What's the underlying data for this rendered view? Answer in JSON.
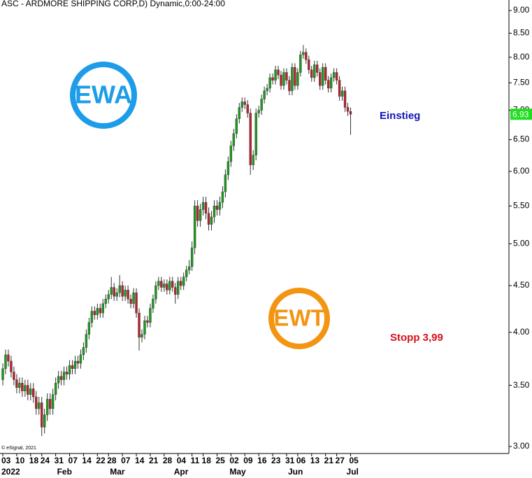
{
  "chart_data": {
    "type": "candlestick",
    "title": "ASC - ARDMORE SHIPPING CORP,D) Dynamic,0:00-24:00",
    "copyright": "© eSignal, 2021",
    "annotations": [
      "Einstieg",
      "Stopp 3,99"
    ],
    "logos": [
      "EWA",
      "EWT"
    ],
    "up_color": "#1d9a1d",
    "down_color": "#b8232d",
    "log_scale": true,
    "last_value": 6.93,
    "categories": [
      "2022-01-03",
      "2022-01-04",
      "2022-01-05",
      "2022-01-06",
      "2022-01-07",
      "2022-01-10",
      "2022-01-11",
      "2022-01-12",
      "2022-01-13",
      "2022-01-14",
      "2022-01-18",
      "2022-01-19",
      "2022-01-20",
      "2022-01-21",
      "2022-01-24",
      "2022-01-25",
      "2022-01-26",
      "2022-01-27",
      "2022-01-28",
      "2022-01-31",
      "2022-02-01",
      "2022-02-02",
      "2022-02-03",
      "2022-02-04",
      "2022-02-07",
      "2022-02-08",
      "2022-02-09",
      "2022-02-10",
      "2022-02-11",
      "2022-02-14",
      "2022-02-15",
      "2022-02-16",
      "2022-02-17",
      "2022-02-18",
      "2022-02-22",
      "2022-02-23",
      "2022-02-24",
      "2022-02-25",
      "2022-02-28",
      "2022-03-01",
      "2022-03-02",
      "2022-03-03",
      "2022-03-04",
      "2022-03-07",
      "2022-03-08",
      "2022-03-09",
      "2022-03-10",
      "2022-03-11",
      "2022-03-14",
      "2022-03-15",
      "2022-03-16",
      "2022-03-17",
      "2022-03-18",
      "2022-03-21",
      "2022-03-22",
      "2022-03-23",
      "2022-03-24",
      "2022-03-25",
      "2022-03-28",
      "2022-03-29",
      "2022-03-30",
      "2022-03-31",
      "2022-04-01",
      "2022-04-04",
      "2022-04-05",
      "2022-04-06",
      "2022-04-07",
      "2022-04-08",
      "2022-04-11",
      "2022-04-12",
      "2022-04-13",
      "2022-04-14",
      "2022-04-18",
      "2022-04-19",
      "2022-04-20",
      "2022-04-21",
      "2022-04-22",
      "2022-04-25",
      "2022-04-26",
      "2022-04-27",
      "2022-04-28",
      "2022-04-29",
      "2022-05-02",
      "2022-05-03",
      "2022-05-04",
      "2022-05-05",
      "2022-05-06",
      "2022-05-09",
      "2022-05-10",
      "2022-05-11",
      "2022-05-12",
      "2022-05-13",
      "2022-05-16",
      "2022-05-17",
      "2022-05-18",
      "2022-05-19",
      "2022-05-20",
      "2022-05-23",
      "2022-05-24",
      "2022-05-25",
      "2022-05-26",
      "2022-05-27",
      "2022-05-31",
      "2022-06-01",
      "2022-06-02",
      "2022-06-03",
      "2022-06-06",
      "2022-06-07",
      "2022-06-08",
      "2022-06-09",
      "2022-06-10",
      "2022-06-13",
      "2022-06-14",
      "2022-06-15",
      "2022-06-16",
      "2022-06-17",
      "2022-06-21",
      "2022-06-22",
      "2022-06-23",
      "2022-06-24",
      "2022-06-27",
      "2022-06-28",
      "2022-06-29",
      "2022-06-30",
      "2022-07-01",
      "2022-07-05"
    ],
    "open": [
      3.55,
      3.65,
      3.78,
      3.72,
      3.62,
      3.55,
      3.48,
      3.52,
      3.45,
      3.5,
      3.42,
      3.47,
      3.4,
      3.3,
      3.35,
      3.15,
      3.25,
      3.38,
      3.3,
      3.42,
      3.52,
      3.58,
      3.55,
      3.62,
      3.6,
      3.68,
      3.65,
      3.72,
      3.7,
      3.78,
      3.85,
      3.98,
      4.1,
      4.22,
      4.18,
      4.25,
      4.2,
      4.3,
      4.35,
      4.4,
      4.48,
      4.38,
      4.42,
      4.5,
      4.38,
      4.45,
      4.35,
      4.3,
      4.42,
      4.2,
      3.95,
      3.98,
      4.12,
      4.1,
      4.25,
      4.35,
      4.5,
      4.55,
      4.48,
      4.52,
      4.45,
      4.55,
      4.48,
      4.4,
      4.55,
      4.5,
      4.6,
      4.68,
      4.72,
      4.95,
      5.5,
      5.3,
      5.45,
      5.55,
      5.4,
      5.25,
      5.35,
      5.5,
      5.45,
      5.55,
      5.7,
      5.95,
      6.15,
      6.4,
      6.6,
      6.85,
      7.05,
      7.15,
      7.1,
      6.95,
      6.1,
      6.25,
      6.95,
      7.0,
      7.2,
      7.35,
      7.4,
      7.6,
      7.55,
      7.75,
      7.65,
      7.45,
      7.7,
      7.55,
      7.35,
      7.8,
      7.45,
      7.7,
      8.05,
      8.1,
      7.95,
      7.75,
      7.6,
      7.85,
      7.7,
      7.45,
      7.8,
      7.55,
      7.4,
      7.6,
      7.7,
      7.55,
      7.25,
      7.35,
      7.05,
      6.98
    ],
    "high": [
      3.7,
      3.83,
      3.83,
      3.77,
      3.67,
      3.6,
      3.57,
      3.57,
      3.55,
      3.55,
      3.52,
      3.52,
      3.45,
      3.4,
      3.4,
      3.3,
      3.43,
      3.43,
      3.47,
      3.57,
      3.63,
      3.63,
      3.67,
      3.67,
      3.73,
      3.73,
      3.77,
      3.77,
      3.83,
      3.9,
      4.03,
      4.15,
      4.27,
      4.27,
      4.3,
      4.3,
      4.35,
      4.4,
      4.45,
      4.6,
      4.53,
      4.47,
      4.62,
      4.55,
      4.5,
      4.5,
      4.4,
      4.47,
      4.47,
      4.25,
      4.03,
      4.17,
      4.17,
      4.3,
      4.4,
      4.55,
      4.6,
      4.6,
      4.57,
      4.57,
      4.6,
      4.6,
      4.53,
      4.6,
      4.6,
      4.65,
      4.73,
      4.8,
      5.03,
      5.58,
      5.58,
      5.53,
      5.63,
      5.63,
      5.48,
      5.43,
      5.58,
      5.58,
      5.63,
      5.78,
      6.03,
      6.23,
      6.48,
      6.68,
      6.93,
      7.13,
      7.23,
      7.23,
      7.18,
      7.03,
      6.33,
      7.03,
      7.08,
      7.28,
      7.43,
      7.48,
      7.68,
      7.68,
      7.83,
      7.83,
      7.73,
      7.78,
      7.78,
      7.63,
      7.88,
      7.88,
      7.78,
      8.13,
      8.25,
      8.18,
      8.03,
      7.83,
      7.93,
      7.93,
      7.78,
      7.88,
      7.88,
      7.63,
      7.68,
      7.78,
      7.78,
      7.63,
      7.43,
      7.43,
      7.13,
      7.05
    ],
    "low": [
      3.5,
      3.6,
      3.67,
      3.57,
      3.5,
      3.43,
      3.43,
      3.4,
      3.4,
      3.37,
      3.37,
      3.35,
      3.25,
      3.25,
      3.08,
      3.1,
      3.2,
      3.25,
      3.25,
      3.37,
      3.47,
      3.5,
      3.5,
      3.55,
      3.55,
      3.6,
      3.6,
      3.65,
      3.65,
      3.73,
      3.8,
      3.93,
      4.05,
      4.13,
      4.13,
      4.15,
      4.15,
      4.25,
      4.3,
      4.35,
      4.33,
      4.33,
      4.37,
      4.33,
      4.33,
      4.3,
      4.25,
      4.25,
      4.15,
      3.82,
      3.9,
      3.93,
      4.05,
      4.05,
      4.2,
      4.3,
      4.45,
      4.43,
      4.43,
      4.4,
      4.4,
      4.43,
      4.3,
      4.35,
      4.45,
      4.45,
      4.55,
      4.63,
      4.67,
      4.87,
      5.22,
      5.22,
      5.37,
      5.32,
      5.17,
      5.17,
      5.27,
      5.37,
      5.37,
      5.47,
      5.62,
      5.87,
      6.07,
      6.32,
      6.52,
      6.77,
      6.97,
      7.02,
      6.87,
      5.95,
      6.02,
      6.17,
      6.87,
      6.92,
      7.12,
      7.27,
      7.32,
      7.47,
      7.47,
      7.57,
      7.37,
      7.37,
      7.47,
      7.27,
      7.27,
      7.37,
      7.37,
      7.62,
      7.97,
      7.87,
      7.67,
      7.52,
      7.52,
      7.62,
      7.37,
      7.37,
      7.47,
      7.32,
      7.32,
      7.52,
      7.47,
      7.17,
      7.17,
      6.97,
      6.9,
      6.58
    ],
    "close": [
      3.65,
      3.78,
      3.72,
      3.62,
      3.55,
      3.48,
      3.52,
      3.45,
      3.5,
      3.42,
      3.47,
      3.4,
      3.3,
      3.35,
      3.15,
      3.25,
      3.38,
      3.3,
      3.42,
      3.52,
      3.58,
      3.55,
      3.62,
      3.6,
      3.68,
      3.65,
      3.72,
      3.7,
      3.78,
      3.85,
      3.98,
      4.1,
      4.22,
      4.18,
      4.25,
      4.2,
      4.3,
      4.35,
      4.4,
      4.48,
      4.38,
      4.42,
      4.5,
      4.38,
      4.45,
      4.35,
      4.3,
      4.42,
      4.2,
      3.95,
      3.98,
      4.12,
      4.1,
      4.25,
      4.35,
      4.5,
      4.55,
      4.48,
      4.52,
      4.45,
      4.55,
      4.48,
      4.4,
      4.55,
      4.5,
      4.6,
      4.68,
      4.72,
      4.95,
      5.5,
      5.3,
      5.45,
      5.55,
      5.4,
      5.25,
      5.35,
      5.5,
      5.45,
      5.55,
      5.7,
      5.95,
      6.15,
      6.4,
      6.6,
      6.85,
      7.05,
      7.15,
      7.1,
      6.95,
      6.1,
      6.25,
      6.95,
      7.0,
      7.2,
      7.35,
      7.4,
      7.6,
      7.55,
      7.75,
      7.65,
      7.45,
      7.7,
      7.55,
      7.35,
      7.8,
      7.45,
      7.7,
      8.05,
      8.1,
      7.95,
      7.75,
      7.6,
      7.85,
      7.7,
      7.45,
      7.8,
      7.55,
      7.4,
      7.6,
      7.7,
      7.55,
      7.25,
      7.35,
      7.05,
      6.98,
      6.93
    ],
    "ylim": [
      3,
      9
    ],
    "yticks": [
      {
        "value": 3,
        "label": "3.00"
      },
      {
        "value": 3.5,
        "label": "3.50"
      },
      {
        "value": 4,
        "label": "4.00"
      },
      {
        "value": 4.5,
        "label": "4.50"
      },
      {
        "value": 5,
        "label": "5.00"
      },
      {
        "value": 5.5,
        "label": "5.50"
      },
      {
        "value": 6,
        "label": "6.00"
      },
      {
        "value": 6.5,
        "label": "6.50"
      },
      {
        "value": 7,
        "label": "7.00"
      },
      {
        "value": 7.5,
        "label": "7.50"
      },
      {
        "value": 8,
        "label": "8.00"
      },
      {
        "value": 8.5,
        "label": "8.50"
      },
      {
        "value": 9,
        "label": "9.00"
      }
    ],
    "xticks": [
      {
        "value": "2022-01-03",
        "label": "03"
      },
      {
        "value": "2022-01-10",
        "label": "10"
      },
      {
        "value": "2022-01-18",
        "label": "18"
      },
      {
        "value": "2022-01-24",
        "label": "24"
      },
      {
        "value": "2022-01-31",
        "label": "31"
      },
      {
        "value": "2022-02-07",
        "label": "07"
      },
      {
        "value": "2022-02-14",
        "label": "14"
      },
      {
        "value": "2022-02-22",
        "label": "22"
      },
      {
        "value": "2022-02-28",
        "label": "28"
      },
      {
        "value": "2022-03-07",
        "label": "07"
      },
      {
        "value": "2022-03-14",
        "label": "14"
      },
      {
        "value": "2022-03-21",
        "label": "21"
      },
      {
        "value": "2022-03-28",
        "label": "28"
      },
      {
        "value": "2022-04-04",
        "label": "04"
      },
      {
        "value": "2022-04-11",
        "label": "11"
      },
      {
        "value": "2022-04-18",
        "label": "18"
      },
      {
        "value": "2022-04-25",
        "label": "25"
      },
      {
        "value": "2022-05-02",
        "label": "02"
      },
      {
        "value": "2022-05-09",
        "label": "09"
      },
      {
        "value": "2022-05-16",
        "label": "16"
      },
      {
        "value": "2022-05-23",
        "label": "23"
      },
      {
        "value": "2022-05-31",
        "label": "31"
      },
      {
        "value": "2022-06-06",
        "label": "06"
      },
      {
        "value": "2022-06-13",
        "label": "13"
      },
      {
        "value": "2022-06-21",
        "label": "21"
      },
      {
        "value": "2022-06-27",
        "label": "27"
      },
      {
        "value": "2022-07-05",
        "label": "05"
      }
    ],
    "month_ticks": [
      {
        "value": "2022-01-03",
        "label": "2022"
      },
      {
        "value": "2022-02-01",
        "label": "Feb"
      },
      {
        "value": "2022-03-01",
        "label": "Mar"
      },
      {
        "value": "2022-04-01",
        "label": "Apr"
      },
      {
        "value": "2022-05-02",
        "label": "May"
      },
      {
        "value": "2022-06-01",
        "label": "Jun"
      },
      {
        "value": "2022-07-01",
        "label": "Jul"
      }
    ]
  }
}
